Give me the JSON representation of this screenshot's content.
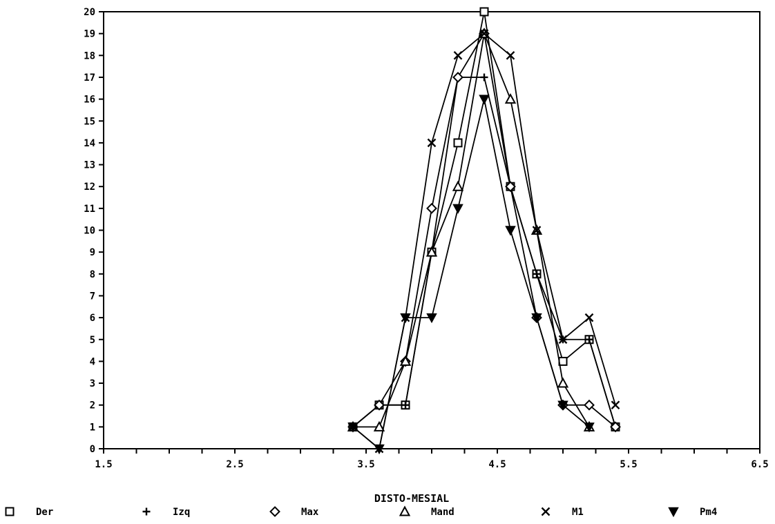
{
  "chart_data": {
    "type": "line",
    "title": "",
    "xlabel": "DISTO-MESIAL",
    "ylabel": "",
    "xlim": [
      1.5,
      6.5
    ],
    "ylim": [
      0,
      20
    ],
    "x_ticks": [
      "1.5",
      "2.5",
      "3.5",
      "4.5",
      "5.5",
      "6.5"
    ],
    "y_ticks": [
      "0",
      "1",
      "2",
      "3",
      "4",
      "5",
      "6",
      "7",
      "8",
      "9",
      "10",
      "11",
      "12",
      "13",
      "14",
      "15",
      "16",
      "17",
      "18",
      "19",
      "20"
    ],
    "grid": false,
    "legend_position": "bottom",
    "series": [
      {
        "name": "Der",
        "marker": "square",
        "x": [
          3.4,
          3.6,
          3.8,
          4.0,
          4.2,
          4.4,
          4.6,
          4.8,
          5.0,
          5.2,
          5.4
        ],
        "y": [
          1,
          2,
          2,
          9,
          14,
          20,
          12,
          8,
          4,
          5,
          1
        ]
      },
      {
        "name": "Izq",
        "marker": "plus",
        "x": [
          3.4,
          3.6,
          3.8,
          4.0,
          4.2,
          4.4,
          4.6,
          4.8,
          5.0,
          5.2,
          5.4
        ],
        "y": [
          1,
          2,
          2,
          9,
          17,
          17,
          12,
          8,
          5,
          5,
          1
        ]
      },
      {
        "name": "Max",
        "marker": "diamond",
        "x": [
          3.4,
          3.6,
          3.8,
          4.0,
          4.2,
          4.4,
          4.6,
          4.8,
          5.0,
          5.2,
          5.4
        ],
        "y": [
          1,
          2,
          4,
          11,
          17,
          19,
          12,
          6,
          2,
          2,
          1
        ]
      },
      {
        "name": "Mand",
        "marker": "triangle",
        "x": [
          3.4,
          3.6,
          3.8,
          4.0,
          4.2,
          4.4,
          4.6,
          4.8,
          5.0,
          5.2
        ],
        "y": [
          1,
          1,
          4,
          9,
          12,
          19,
          16,
          10,
          3,
          1
        ]
      },
      {
        "name": "M1",
        "marker": "x",
        "x": [
          3.4,
          3.6,
          3.8,
          4.0,
          4.2,
          4.4,
          4.6,
          4.8,
          5.0,
          5.2,
          5.4
        ],
        "y": [
          1,
          0,
          6,
          14,
          18,
          19,
          18,
          10,
          5,
          6,
          2
        ]
      },
      {
        "name": "Pm4",
        "marker": "triangle-down",
        "x": [
          3.4,
          3.6,
          3.8,
          4.0,
          4.2,
          4.4,
          4.6,
          4.8,
          5.0,
          5.2
        ],
        "y": [
          1,
          0,
          6,
          6,
          11,
          16,
          10,
          6,
          2,
          1
        ]
      }
    ]
  }
}
